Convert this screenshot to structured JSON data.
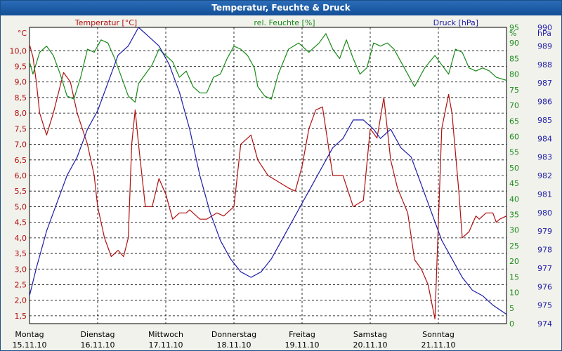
{
  "window": {
    "title": "Temperatur, Feuchte & Druck"
  },
  "colors": {
    "temperature": "#b01010",
    "humidity": "#1a8a1a",
    "pressure": "#1c1ca8",
    "grid": "#000000",
    "plot_bg": "#ffffff"
  },
  "chart_data": {
    "type": "line",
    "title": "Temperatur, Feuchte & Druck",
    "series_labels": {
      "temperature": "Temperatur [°C]",
      "humidity": "rel. Feuchte [%]",
      "pressure": "Druck [hPa]"
    },
    "axes": {
      "left": {
        "unit": "°C",
        "ylim": [
          1.25,
          10.75
        ],
        "ticks": [
          "1,5",
          "2,0",
          "2,5",
          "3,0",
          "3,5",
          "4,0",
          "4,5",
          "5,0",
          "5,5",
          "6,0",
          "6,5",
          "7,0",
          "7,5",
          "8,0",
          "8,5",
          "9,0",
          "9,5",
          "10,0"
        ]
      },
      "right1": {
        "unit": "%",
        "ylim": [
          0,
          95
        ],
        "ticks": [
          "0",
          "5",
          "10",
          "15",
          "20",
          "25",
          "30",
          "35",
          "40",
          "45",
          "50",
          "55",
          "60",
          "65",
          "70",
          "75",
          "80",
          "85",
          "90",
          "95"
        ]
      },
      "right2": {
        "unit": "hPa",
        "ylim": [
          974,
          990
        ],
        "ticks": [
          "974",
          "975",
          "976",
          "977",
          "978",
          "979",
          "980",
          "981",
          "982",
          "983",
          "984",
          "985",
          "986",
          "987",
          "988",
          "989",
          "990"
        ]
      }
    },
    "x_labels": [
      {
        "day": "Montag",
        "date": "15.11.10"
      },
      {
        "day": "Dienstag",
        "date": "16.11.10"
      },
      {
        "day": "Mittwoch",
        "date": "17.11.10"
      },
      {
        "day": "Donnerstag",
        "date": "18.11.10"
      },
      {
        "day": "Freitag",
        "date": "19.11.10"
      },
      {
        "day": "Samstag",
        "date": "20.11.10"
      },
      {
        "day": "Sonntag",
        "date": "21.11.10"
      }
    ],
    "x_range_days": [
      0,
      7
    ],
    "grid": true,
    "series": [
      {
        "name": "temperature",
        "axis": "left",
        "x": [
          0,
          0.05,
          0.1,
          0.15,
          0.25,
          0.35,
          0.5,
          0.6,
          0.7,
          0.85,
          0.95,
          1.0,
          1.1,
          1.2,
          1.3,
          1.38,
          1.45,
          1.5,
          1.55,
          1.6,
          1.7,
          1.8,
          1.9,
          2.0,
          2.1,
          2.2,
          2.3,
          2.35,
          2.4,
          2.5,
          2.6,
          2.75,
          2.85,
          3.0,
          3.1,
          3.25,
          3.35,
          3.5,
          3.65,
          3.8,
          3.9,
          4.0,
          4.1,
          4.2,
          4.3,
          4.45,
          4.6,
          4.75,
          4.9,
          5.0,
          5.1,
          5.2,
          5.3,
          5.4,
          5.55,
          5.65,
          5.75,
          5.85,
          5.95,
          6.05,
          6.15,
          6.2,
          6.3,
          6.35,
          6.45,
          6.55,
          6.6,
          6.7,
          6.8,
          6.85,
          6.9,
          7.0
        ],
        "y": [
          10.2,
          9.8,
          9.0,
          8.0,
          7.3,
          8.0,
          9.3,
          9.0,
          8.0,
          7.0,
          6.0,
          5.0,
          4.0,
          3.4,
          3.6,
          3.4,
          4.0,
          7.0,
          8.1,
          7.0,
          5.0,
          5.0,
          5.9,
          5.4,
          4.6,
          4.8,
          4.8,
          4.9,
          4.8,
          4.6,
          4.6,
          4.8,
          4.7,
          5.0,
          7.0,
          7.3,
          6.5,
          6.0,
          5.8,
          5.6,
          5.5,
          6.3,
          7.5,
          8.1,
          8.2,
          6.0,
          6.0,
          5.0,
          5.2,
          7.5,
          7.2,
          8.5,
          6.5,
          5.6,
          4.8,
          3.3,
          3.0,
          2.5,
          1.4,
          7.5,
          8.6,
          8.0,
          5.5,
          4.0,
          4.2,
          4.7,
          4.6,
          4.8,
          4.8,
          4.5,
          4.6,
          4.7
        ]
      },
      {
        "name": "humidity",
        "axis": "right1",
        "x": [
          0,
          0.05,
          0.15,
          0.25,
          0.35,
          0.45,
          0.55,
          0.65,
          0.75,
          0.85,
          0.95,
          1.05,
          1.15,
          1.25,
          1.35,
          1.45,
          1.55,
          1.6,
          1.7,
          1.8,
          1.9,
          2.0,
          2.1,
          2.2,
          2.3,
          2.4,
          2.5,
          2.6,
          2.7,
          2.8,
          2.9,
          3.0,
          3.1,
          3.2,
          3.3,
          3.35,
          3.45,
          3.55,
          3.65,
          3.8,
          3.95,
          4.1,
          4.25,
          4.35,
          4.45,
          4.55,
          4.65,
          4.75,
          4.85,
          4.95,
          5.05,
          5.15,
          5.25,
          5.35,
          5.5,
          5.65,
          5.8,
          5.95,
          6.05,
          6.15,
          6.25,
          6.35,
          6.45,
          6.55,
          6.65,
          6.75,
          6.85,
          7.0
        ],
        "y": [
          84,
          80,
          87,
          89,
          86,
          80,
          73,
          72,
          79,
          88,
          87,
          91,
          90,
          85,
          79,
          73,
          71,
          77,
          80,
          83,
          88,
          86,
          84,
          79,
          81,
          76,
          74,
          74,
          79,
          80,
          85,
          89,
          88,
          86,
          82,
          76,
          73,
          72,
          80,
          88,
          90,
          87,
          90,
          93,
          88,
          85,
          91,
          85,
          80,
          82,
          90,
          89,
          90,
          88,
          82,
          76,
          82,
          86,
          83,
          80,
          88,
          87,
          82,
          81,
          82,
          81,
          79,
          78
        ]
      },
      {
        "name": "pressure",
        "axis": "right2",
        "x": [
          0,
          0.1,
          0.25,
          0.4,
          0.55,
          0.7,
          0.85,
          1.0,
          1.15,
          1.3,
          1.45,
          1.6,
          1.75,
          1.9,
          2.05,
          2.2,
          2.35,
          2.5,
          2.65,
          2.8,
          2.95,
          3.1,
          3.25,
          3.4,
          3.55,
          3.7,
          3.85,
          4.0,
          4.15,
          4.3,
          4.45,
          4.6,
          4.75,
          4.9,
          5.05,
          5.15,
          5.3,
          5.45,
          5.6,
          5.75,
          5.9,
          6.05,
          6.2,
          6.35,
          6.5,
          6.65,
          6.8,
          7.0
        ],
        "y": [
          975.5,
          977.0,
          979.0,
          980.5,
          982.0,
          983.0,
          984.5,
          985.5,
          987.0,
          988.5,
          989.0,
          990.0,
          989.5,
          989.0,
          988.0,
          986.5,
          984.5,
          982.0,
          980.0,
          978.5,
          977.5,
          976.8,
          976.5,
          976.8,
          977.5,
          978.5,
          979.5,
          980.5,
          981.5,
          982.5,
          983.5,
          984.0,
          985.0,
          985.0,
          984.5,
          984.0,
          984.5,
          983.5,
          983.0,
          981.5,
          980.0,
          978.5,
          977.5,
          976.5,
          975.8,
          975.5,
          975.0,
          974.5
        ]
      }
    ]
  }
}
